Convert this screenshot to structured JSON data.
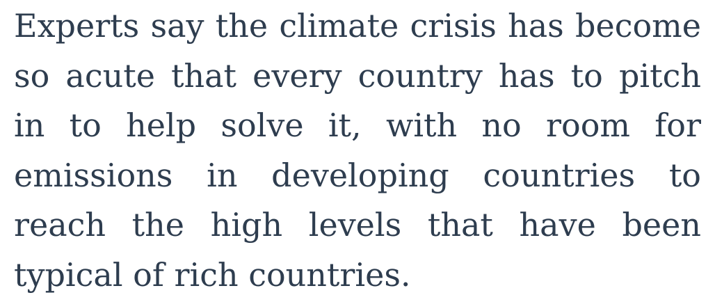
{
  "article": {
    "lines": [
      "Experts say the climate crisis has become",
      "so acute that every country has to pitch",
      "in to help solve it, with no room for",
      "emissions in developing countries to",
      "reach the high levels that have been",
      "typical of rich countries."
    ]
  }
}
